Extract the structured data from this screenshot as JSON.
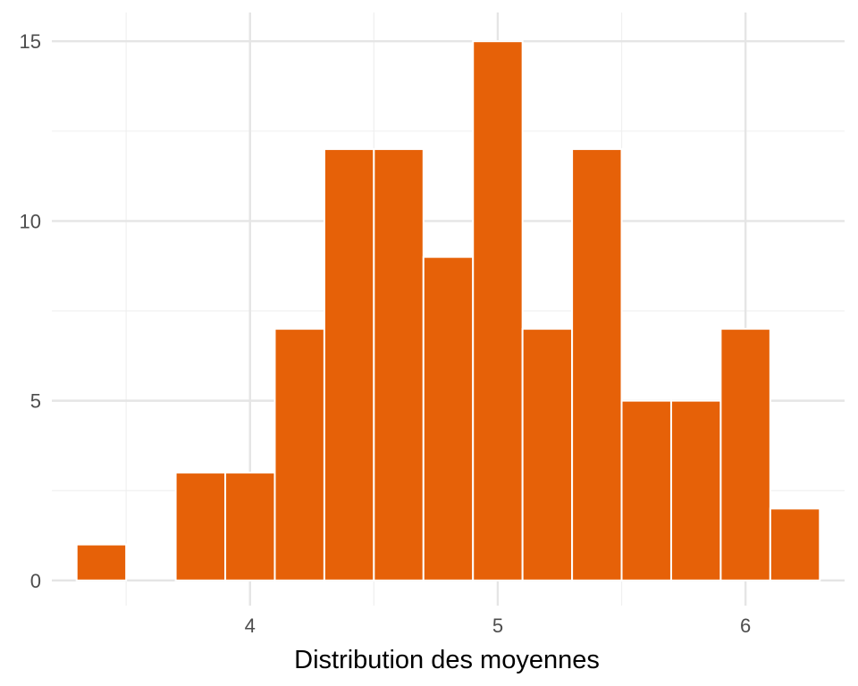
{
  "chart_data": {
    "type": "bar",
    "title": "",
    "xlabel": "Distribution des moyennes",
    "ylabel": "",
    "bin_width": 0.2,
    "bins": [
      {
        "x0": 3.3,
        "x1": 3.5,
        "count": 1
      },
      {
        "x0": 3.5,
        "x1": 3.7,
        "count": 0
      },
      {
        "x0": 3.7,
        "x1": 3.9,
        "count": 3
      },
      {
        "x0": 3.9,
        "x1": 4.1,
        "count": 3
      },
      {
        "x0": 4.1,
        "x1": 4.3,
        "count": 7
      },
      {
        "x0": 4.3,
        "x1": 4.5,
        "count": 12
      },
      {
        "x0": 4.5,
        "x1": 4.7,
        "count": 12
      },
      {
        "x0": 4.7,
        "x1": 4.9,
        "count": 9
      },
      {
        "x0": 4.9,
        "x1": 5.1,
        "count": 15
      },
      {
        "x0": 5.1,
        "x1": 5.3,
        "count": 7
      },
      {
        "x0": 5.3,
        "x1": 5.5,
        "count": 12
      },
      {
        "x0": 5.5,
        "x1": 5.7,
        "count": 5
      },
      {
        "x0": 5.7,
        "x1": 5.9,
        "count": 5
      },
      {
        "x0": 5.9,
        "x1": 6.1,
        "count": 7
      },
      {
        "x0": 6.1,
        "x1": 6.3,
        "count": 2
      }
    ],
    "xlim": [
      3.2,
      6.4
    ],
    "ylim": [
      -0.7,
      15.8
    ],
    "x_ticks": [
      4,
      5,
      6
    ],
    "x_minor": [
      3.5,
      4.5,
      5.5
    ],
    "y_ticks": [
      0,
      5,
      10,
      15
    ],
    "y_minor": [
      2.5,
      7.5,
      12.5
    ],
    "grid": true,
    "colors": {
      "bar_fill": "#E66108",
      "bar_stroke": "#ffffff",
      "grid_major": "#e5e5e5",
      "grid_minor": "#f0f0f0"
    }
  }
}
